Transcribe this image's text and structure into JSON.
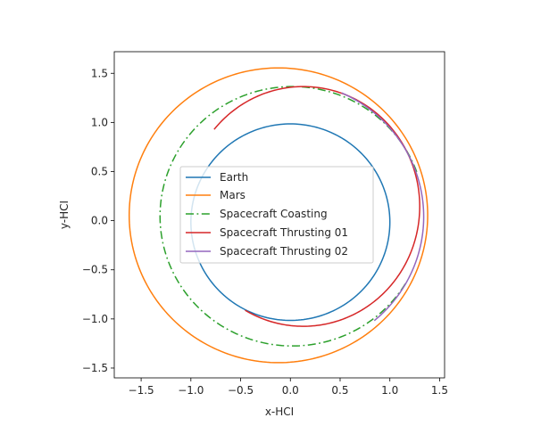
{
  "chart_data": {
    "type": "line",
    "title": "",
    "xlabel": "x-HCI",
    "ylabel": "y-HCI",
    "xlim": [
      -1.77,
      1.55
    ],
    "ylim": [
      -1.6,
      1.72
    ],
    "x_ticks": [
      -1.5,
      -1.0,
      -0.5,
      0.0,
      0.5,
      1.0,
      1.5
    ],
    "x_tick_labels": [
      "−1.5",
      "−1.0",
      "−0.5",
      "0.0",
      "0.5",
      "1.0",
      "1.5"
    ],
    "y_ticks": [
      -1.5,
      -1.0,
      -0.5,
      0.0,
      0.5,
      1.0,
      1.5
    ],
    "y_tick_labels": [
      "−1.5",
      "−1.0",
      "−0.5",
      "0.0",
      "0.5",
      "1.0",
      "1.5"
    ],
    "grid": false,
    "legend": {
      "placement": "center"
    },
    "series": [
      {
        "name": "Earth",
        "color": "#1f77b4",
        "style": "solid",
        "orbit": {
          "center": [
            0.0,
            -0.015
          ],
          "radius": 1.0,
          "from_deg": 0,
          "to_deg": 360
        }
      },
      {
        "name": "Mars",
        "color": "#ff7f0e",
        "style": "solid",
        "orbit": {
          "center": [
            -0.12,
            0.055
          ],
          "radius_x": 1.5,
          "radius_y": 1.5,
          "from_deg": 0,
          "to_deg": 360
        }
      },
      {
        "name": "Spacecraft Coasting",
        "color": "#2ca02c",
        "style": "dashdot",
        "orbit": {
          "center": [
            0.02,
            0.045
          ],
          "radius_x": 1.33,
          "radius_y": 1.32,
          "from_deg": 20,
          "to_deg": 330
        }
      },
      {
        "name": "Spacecraft Thrusting 01",
        "color": "#d62728",
        "style": "solid",
        "orbit": {
          "center": [
            0.13,
            0.145
          ],
          "radius_x": 1.17,
          "radius_y": 1.22,
          "from_deg": -120,
          "to_deg": 140
        }
      },
      {
        "name": "Spacecraft Thrusting 02",
        "color": "#9467bd",
        "style": "solid",
        "orbit": {
          "center": [
            -0.05,
            0.04
          ],
          "radius_x": 1.39,
          "radius_y": 1.38,
          "from_deg": -50,
          "to_deg": 66
        }
      }
    ]
  }
}
